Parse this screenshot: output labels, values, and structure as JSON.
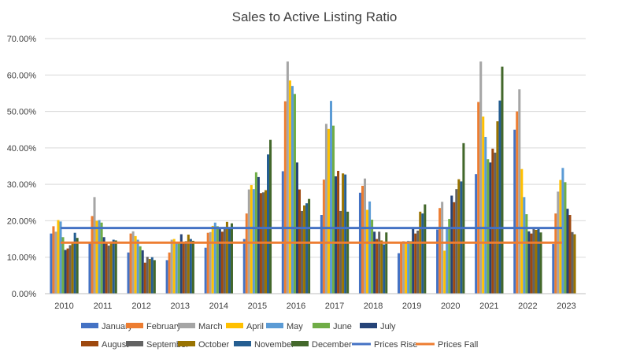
{
  "chart_data": {
    "type": "bar",
    "title": "Sales to Active Listing Ratio",
    "xlabel": "",
    "ylabel": "",
    "ylim": [
      0,
      70
    ],
    "y_ticks": [
      "0.00%",
      "10.00%",
      "20.00%",
      "30.00%",
      "40.00%",
      "50.00%",
      "60.00%",
      "70.00%"
    ],
    "grid": "horizontal",
    "legend_position": "bottom",
    "categories": [
      "2010",
      "2011",
      "2012",
      "2013",
      "2014",
      "2015",
      "2016",
      "2017",
      "2018",
      "2019",
      "2020",
      "2021",
      "2022",
      "2023"
    ],
    "series": [
      {
        "name": "January",
        "color": "#4472C4",
        "values": [
          16.5,
          14.0,
          11.3,
          9.2,
          12.6,
          15.0,
          33.6,
          21.6,
          27.7,
          11.1,
          17.6,
          32.8,
          45.0,
          13.6
        ]
      },
      {
        "name": "February",
        "color": "#ED7D31",
        "values": [
          18.5,
          21.3,
          16.5,
          11.3,
          16.7,
          22.0,
          52.8,
          31.3,
          29.6,
          13.9,
          23.5,
          52.6,
          50.0,
          22.0
        ]
      },
      {
        "name": "March",
        "color": "#A5A5A5",
        "values": [
          17.0,
          26.5,
          17.1,
          14.8,
          16.9,
          28.6,
          63.7,
          46.6,
          31.6,
          14.4,
          25.2,
          63.7,
          56.1,
          28.0
        ]
      },
      {
        "name": "April",
        "color": "#FFC000",
        "values": [
          20.2,
          20.0,
          15.8,
          15.0,
          18.6,
          29.8,
          58.5,
          45.2,
          23.0,
          14.0,
          11.8,
          48.6,
          34.2,
          31.2
        ]
      },
      {
        "name": "May",
        "color": "#5B9BD5",
        "values": [
          19.8,
          20.2,
          14.8,
          14.1,
          19.5,
          28.7,
          57.0,
          52.9,
          25.3,
          14.5,
          18.0,
          43.0,
          26.5,
          34.5
        ]
      },
      {
        "name": "June",
        "color": "#70AD47",
        "values": [
          15.5,
          19.5,
          13.0,
          14.2,
          18.5,
          33.3,
          54.8,
          46.1,
          20.3,
          14.4,
          20.5,
          36.9,
          21.8,
          30.6
        ]
      },
      {
        "name": "July",
        "color": "#264478",
        "values": [
          12.0,
          15.5,
          11.9,
          16.3,
          17.7,
          32.0,
          36.0,
          32.2,
          17.0,
          17.9,
          26.9,
          36.0,
          17.1,
          23.3
        ]
      },
      {
        "name": "August",
        "color": "#9E480E",
        "values": [
          12.4,
          14.2,
          8.5,
          14.2,
          17.0,
          27.6,
          28.6,
          33.7,
          15.0,
          16.5,
          25.1,
          39.8,
          16.5,
          21.6
        ]
      },
      {
        "name": "September",
        "color": "#636363",
        "values": [
          13.3,
          13.2,
          10.1,
          14.4,
          18.3,
          27.8,
          22.7,
          22.7,
          17.0,
          17.3,
          28.7,
          38.7,
          17.8,
          16.9
        ]
      },
      {
        "name": "October",
        "color": "#997300",
        "values": [
          14.0,
          14.3,
          9.5,
          16.2,
          19.7,
          28.4,
          24.2,
          33.0,
          14.6,
          22.5,
          31.4,
          47.3,
          17.5,
          16.3
        ]
      },
      {
        "name": "November",
        "color": "#255E91",
        "values": [
          16.7,
          14.8,
          10.0,
          15.0,
          17.8,
          38.2,
          24.8,
          32.7,
          13.5,
          22.0,
          30.8,
          53.0,
          18.0,
          null
        ]
      },
      {
        "name": "December",
        "color": "#43682B",
        "values": [
          15.3,
          14.6,
          9.2,
          14.5,
          19.3,
          42.2,
          26.0,
          22.5,
          16.8,
          24.5,
          41.3,
          62.3,
          16.8,
          null
        ]
      }
    ],
    "reference_lines": [
      {
        "name": "Prices Rise",
        "color": "#4472C4",
        "value": 18.0
      },
      {
        "name": "Prices Fall",
        "color": "#ED7D31",
        "value": 14.0
      }
    ]
  }
}
